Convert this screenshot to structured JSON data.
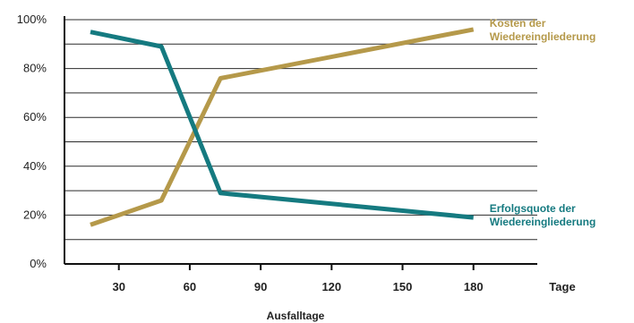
{
  "chart_data": {
    "type": "line",
    "xlabel": "Ausfalltage",
    "x_unit_label": "Tage",
    "xticks": [
      30,
      60,
      90,
      120,
      150,
      180
    ],
    "yticks": [
      "0%",
      "20%",
      "40%",
      "60%",
      "80%",
      "100%"
    ],
    "xlim": [
      7,
      207
    ],
    "ylim": [
      0,
      100
    ],
    "grid": "horizontal",
    "series": [
      {
        "name_lines": [
          "Kosten der",
          "Wiedereingliederung"
        ],
        "color": "#b5994a",
        "x": [
          18,
          48,
          73,
          180
        ],
        "y": [
          16,
          26,
          76,
          96
        ]
      },
      {
        "name_lines": [
          "Erfolgsquote der",
          "Wiedereingliederung"
        ],
        "color": "#157a80",
        "x": [
          18,
          48,
          73,
          180
        ],
        "y": [
          95,
          89,
          29,
          19
        ]
      }
    ]
  }
}
